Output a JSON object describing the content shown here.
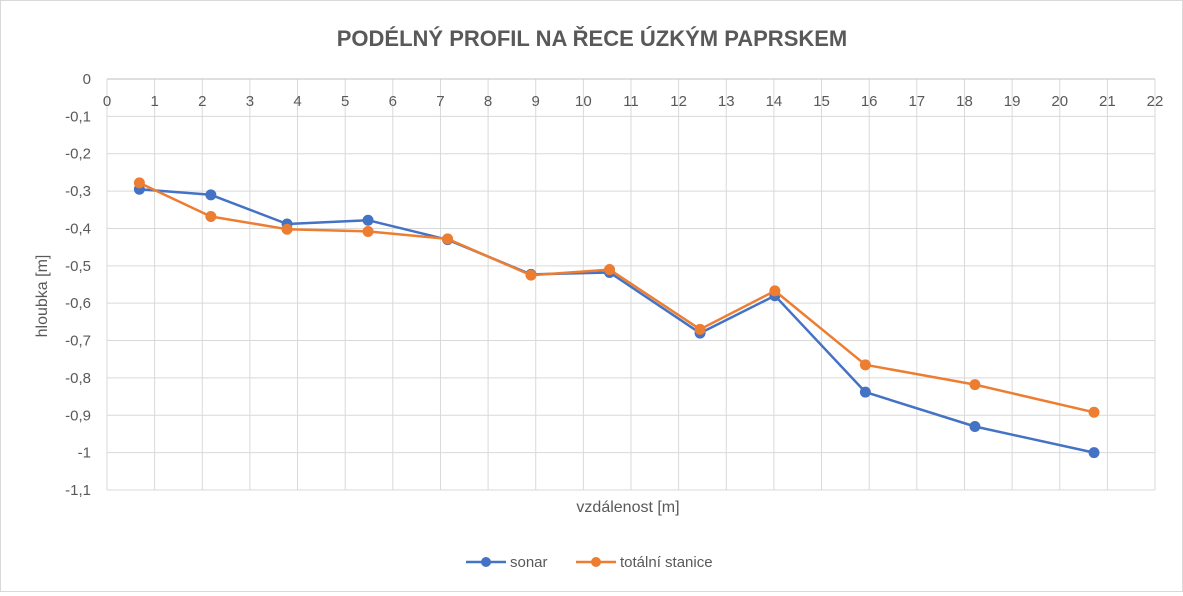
{
  "chart_data": {
    "type": "line",
    "title": "PODÉLNÝ PROFIL NA ŘECE ÚZKÝM PAPRSKEM",
    "xlabel": "vzdálenost [m]",
    "ylabel": "hloubka [m]",
    "xlim": [
      0,
      22
    ],
    "ylim": [
      -1.1,
      0
    ],
    "x_ticks": [
      "0",
      "1",
      "2",
      "3",
      "4",
      "5",
      "6",
      "7",
      "8",
      "9",
      "10",
      "11",
      "12",
      "13",
      "14",
      "15",
      "16",
      "17",
      "18",
      "19",
      "20",
      "21",
      "22"
    ],
    "y_ticks": [
      "0",
      "-0,1",
      "-0,2",
      "-0,3",
      "-0,4",
      "-0,5",
      "-0,6",
      "-0,7",
      "-0,8",
      "-0,9",
      "-1",
      "-1,1"
    ],
    "x_axis_position": "top",
    "grid": true,
    "legend_position": "bottom",
    "series": [
      {
        "name": "sonar",
        "color": "#4472C4",
        "x": [
          0.68,
          2.18,
          3.78,
          5.48,
          7.15,
          8.9,
          10.55,
          12.45,
          14.02,
          15.92,
          18.22,
          20.72
        ],
        "values": [
          -0.295,
          -0.31,
          -0.388,
          -0.378,
          -0.43,
          -0.523,
          -0.518,
          -0.68,
          -0.58,
          -0.838,
          -0.93,
          -1.0
        ]
      },
      {
        "name": "totální stanice",
        "color": "#ED7D31",
        "x": [
          0.68,
          2.18,
          3.78,
          5.48,
          7.15,
          8.9,
          10.55,
          12.45,
          14.02,
          15.92,
          18.22,
          20.72
        ],
        "values": [
          -0.278,
          -0.368,
          -0.402,
          -0.408,
          -0.428,
          -0.525,
          -0.51,
          -0.67,
          -0.567,
          -0.765,
          -0.818,
          -0.892
        ]
      }
    ]
  }
}
